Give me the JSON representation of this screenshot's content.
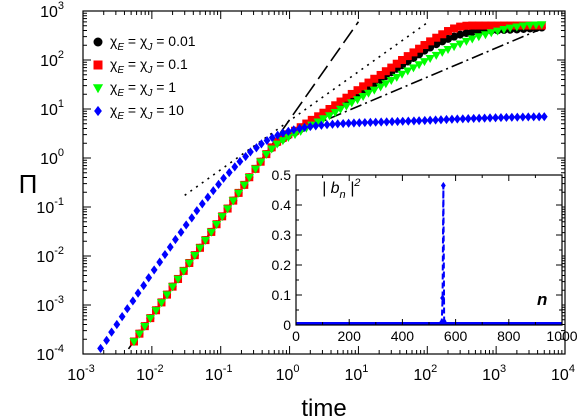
{
  "chart_data": [
    {
      "type": "scatter",
      "xlabel": "time",
      "ylabel": "Π",
      "xscale": "log",
      "yscale": "log",
      "xlim": [
        0.001,
        10000
      ],
      "ylim": [
        0.0001,
        1000
      ],
      "x_ticks": [
        {
          "base": "10",
          "exp": "-3"
        },
        {
          "base": "10",
          "exp": "-2"
        },
        {
          "base": "10",
          "exp": "-1"
        },
        {
          "base": "10",
          "exp": "0"
        },
        {
          "base": "10",
          "exp": "1"
        },
        {
          "base": "10",
          "exp": "2"
        },
        {
          "base": "10",
          "exp": "3"
        },
        {
          "base": "10",
          "exp": "4"
        }
      ],
      "y_ticks": [
        {
          "base": "10",
          "exp": "-4"
        },
        {
          "base": "10",
          "exp": "-3"
        },
        {
          "base": "10",
          "exp": "-2"
        },
        {
          "base": "10",
          "exp": "-1"
        },
        {
          "base": "10",
          "exp": "0"
        },
        {
          "base": "10",
          "exp": "1"
        },
        {
          "base": "10",
          "exp": "2"
        },
        {
          "base": "10",
          "exp": "3"
        }
      ],
      "legend_position": "top-left",
      "series": [
        {
          "name": "χE = χJ = 0.01",
          "legend_value": "0.01",
          "marker": "circle",
          "color": "#000000",
          "x": [
            0.0055,
            0.0066,
            0.0079,
            0.0095,
            0.0115,
            0.0138,
            0.0166,
            0.02,
            0.024,
            0.029,
            0.035,
            0.042,
            0.05,
            0.06,
            0.073,
            0.087,
            0.105,
            0.126,
            0.152,
            0.182,
            0.22,
            0.26,
            0.32,
            0.38,
            0.46,
            0.55,
            0.66,
            0.8,
            0.96,
            1.2,
            1.45,
            1.75,
            2.1,
            2.6,
            3.1,
            3.8,
            4.6,
            5.5,
            6.7,
            8,
            9.7,
            11.7,
            14,
            17,
            21,
            25,
            30,
            36,
            43,
            52,
            63,
            76,
            91,
            110,
            135,
            165,
            200,
            245,
            300,
            370,
            450,
            560,
            700,
            850,
            1050,
            1300,
            1600,
            2000,
            2500,
            3100,
            3800,
            4600
          ],
          "y": [
            0.00018,
            0.00026,
            0.00037,
            0.00054,
            0.00078,
            0.00113,
            0.00163,
            0.00237,
            0.0034,
            0.00497,
            0.0072,
            0.0104,
            0.0147,
            0.0211,
            0.031,
            0.0445,
            0.0645,
            0.093,
            0.135,
            0.194,
            0.283,
            0.405,
            0.6,
            0.84,
            1.2,
            1.6,
            2.05,
            2.45,
            2.85,
            3.35,
            3.9,
            4.6,
            5.4,
            6.3,
            7.4,
            8.7,
            10.2,
            12,
            14.3,
            16.8,
            19.9,
            23.6,
            28,
            33,
            39.5,
            47,
            56,
            66,
            78,
            93,
            110,
            130,
            155,
            180,
            210,
            240,
            270,
            300,
            330,
            355,
            375,
            390,
            395,
            400,
            405,
            410,
            415,
            420,
            430,
            440,
            450,
            460
          ]
        },
        {
          "name": "χE = χJ = 0.1",
          "legend_value": "0.1",
          "marker": "square",
          "color": "#ff0000",
          "x": [
            0.0055,
            0.0066,
            0.0079,
            0.0095,
            0.0115,
            0.0138,
            0.0166,
            0.02,
            0.024,
            0.029,
            0.035,
            0.042,
            0.05,
            0.06,
            0.073,
            0.087,
            0.105,
            0.126,
            0.152,
            0.182,
            0.22,
            0.26,
            0.32,
            0.38,
            0.46,
            0.55,
            0.66,
            0.8,
            0.96,
            1.2,
            1.45,
            1.75,
            2.1,
            2.6,
            3.1,
            3.8,
            4.6,
            5.5,
            6.7,
            8,
            9.7,
            11.7,
            14,
            17,
            21,
            25,
            30,
            36,
            43,
            52,
            63,
            76,
            91,
            110,
            135,
            165,
            200,
            245,
            300,
            370,
            450,
            560,
            700,
            850,
            1050,
            1300,
            1600,
            2000,
            2500,
            3100,
            3800,
            4600
          ],
          "y": [
            0.00018,
            0.00026,
            0.00037,
            0.00054,
            0.00078,
            0.00113,
            0.00163,
            0.00237,
            0.0034,
            0.00497,
            0.0072,
            0.0104,
            0.0147,
            0.0211,
            0.031,
            0.0445,
            0.0645,
            0.093,
            0.135,
            0.194,
            0.283,
            0.405,
            0.6,
            0.84,
            1.2,
            1.65,
            2.15,
            2.6,
            3.05,
            3.6,
            4.25,
            5.05,
            6,
            7.1,
            8.4,
            10,
            11.9,
            14.2,
            17,
            20.3,
            24.2,
            29,
            34.6,
            41.4,
            49.5,
            59,
            70,
            84,
            100,
            120,
            143,
            170,
            202,
            240,
            285,
            335,
            390,
            440,
            480,
            500,
            505,
            505,
            505,
            505,
            505,
            505,
            505,
            505,
            505,
            505,
            505,
            505
          ]
        },
        {
          "name": "χE = χJ = 1",
          "legend_value": "1",
          "marker": "triangle-down",
          "color": "#00ff00",
          "x": [
            0.0055,
            0.0066,
            0.0079,
            0.0095,
            0.0115,
            0.0138,
            0.0166,
            0.02,
            0.024,
            0.029,
            0.035,
            0.042,
            0.05,
            0.06,
            0.073,
            0.087,
            0.105,
            0.126,
            0.152,
            0.182,
            0.22,
            0.26,
            0.32,
            0.38,
            0.46,
            0.55,
            0.66,
            0.8,
            0.96,
            1.2,
            1.45,
            1.75,
            2.1,
            2.6,
            3.1,
            3.8,
            4.6,
            5.5,
            6.7,
            8,
            9.7,
            11.7,
            14,
            17,
            21,
            25,
            30,
            36,
            43,
            52,
            63,
            76,
            91,
            110,
            135,
            165,
            200,
            245,
            300,
            370,
            450,
            560,
            700,
            850,
            1050,
            1300,
            1600,
            2000,
            2500,
            3100,
            3800,
            4600
          ],
          "y": [
            0.00018,
            0.00026,
            0.00037,
            0.00054,
            0.00078,
            0.00113,
            0.00163,
            0.00237,
            0.0034,
            0.00497,
            0.0072,
            0.0104,
            0.0147,
            0.0211,
            0.031,
            0.0445,
            0.0645,
            0.093,
            0.135,
            0.194,
            0.283,
            0.405,
            0.6,
            0.84,
            1.2,
            1.55,
            1.95,
            2.3,
            2.65,
            3.05,
            3.55,
            4.1,
            4.75,
            5.5,
            6.4,
            7.4,
            8.6,
            10,
            11.6,
            13.5,
            15.7,
            18.2,
            21.2,
            24.6,
            28.6,
            33.2,
            38.6,
            44.8,
            52,
            60.5,
            70,
            81,
            94,
            109,
            126,
            145,
            166,
            190,
            215,
            243,
            272,
            302,
            333,
            364,
            395,
            425,
            453,
            478,
            500,
            515,
            525,
            530
          ]
        },
        {
          "name": "χE = χJ = 10",
          "legend_value": "10",
          "marker": "diamond",
          "color": "#0000ff",
          "x": [
            0.0018,
            0.0022,
            0.0026,
            0.0031,
            0.0037,
            0.0044,
            0.0053,
            0.0063,
            0.0076,
            0.009,
            0.0108,
            0.013,
            0.0155,
            0.0185,
            0.022,
            0.0265,
            0.0315,
            0.038,
            0.045,
            0.054,
            0.065,
            0.078,
            0.093,
            0.11,
            0.133,
            0.16,
            0.19,
            0.23,
            0.27,
            0.33,
            0.39,
            0.47,
            0.56,
            0.67,
            0.8,
            0.96,
            1.15,
            1.4,
            1.65,
            2,
            2.4,
            2.9,
            3.5,
            4.2,
            5,
            6,
            7.2,
            8.6,
            10.3,
            12.4,
            14.9,
            17.8,
            21.4,
            25.7,
            30.8,
            37,
            44,
            53,
            64,
            76,
            92,
            110,
            132,
            158,
            190,
            228,
            273,
            328,
            393,
            472,
            566,
            680,
            815,
            980,
            1175,
            1410,
            1690,
            2030,
            2440,
            2930,
            3510,
            4210,
            5000
          ],
          "y": [
            0.00013,
            0.00019,
            0.00028,
            0.0004,
            0.00058,
            0.00084,
            0.00121,
            0.00175,
            0.0025,
            0.0036,
            0.0052,
            0.0075,
            0.0107,
            0.0152,
            0.0217,
            0.0305,
            0.043,
            0.06,
            0.084,
            0.116,
            0.158,
            0.215,
            0.29,
            0.385,
            0.505,
            0.66,
            0.85,
            1.07,
            1.33,
            1.62,
            1.94,
            2.27,
            2.6,
            2.92,
            3.22,
            3.5,
            3.76,
            4,
            4.2,
            4.38,
            4.53,
            4.66,
            4.78,
            4.88,
            4.97,
            5.05,
            5.12,
            5.18,
            5.24,
            5.29,
            5.34,
            5.38,
            5.43,
            5.47,
            5.52,
            5.56,
            5.61,
            5.66,
            5.71,
            5.77,
            5.83,
            5.9,
            5.97,
            6.04,
            6.11,
            6.18,
            6.25,
            6.3,
            6.36,
            6.42,
            6.47,
            6.52,
            6.58,
            6.63,
            6.68,
            6.73,
            6.77,
            6.81,
            6.85,
            6.89,
            6.92,
            6.95,
            6.97
          ]
        }
      ],
      "guide_lines": [
        {
          "style": "long-dash",
          "x": [
            0.003,
            10
          ],
          "y": [
            5.44e-05,
            604
          ]
        },
        {
          "style": "dotted",
          "x": [
            0.03,
            100
          ],
          "y": [
            0.173,
            577
          ]
        },
        {
          "style": "dash-dot",
          "x": [
            1,
            5000
          ],
          "y": [
            2.9,
            458
          ]
        }
      ]
    },
    {
      "type": "line",
      "inset": true,
      "xlabel": "n",
      "ylabel": "| b_n |²",
      "xlim": [
        0,
        1000
      ],
      "ylim": [
        0,
        0.5
      ],
      "x_ticks": [
        "0",
        "200",
        "400",
        "600",
        "800",
        "1000"
      ],
      "y_ticks": [
        "0",
        "0.1",
        "0.2",
        "0.3",
        "0.4",
        "0.5"
      ],
      "series": [
        {
          "color": "#0000ff",
          "marker": "diamond",
          "line": "dashed",
          "x": [
            545,
            548,
            551,
            554,
            557,
            560
          ],
          "y": [
            0.002,
            0.01,
            0.09,
            0.465,
            0.012,
            0.002
          ]
        }
      ]
    }
  ]
}
